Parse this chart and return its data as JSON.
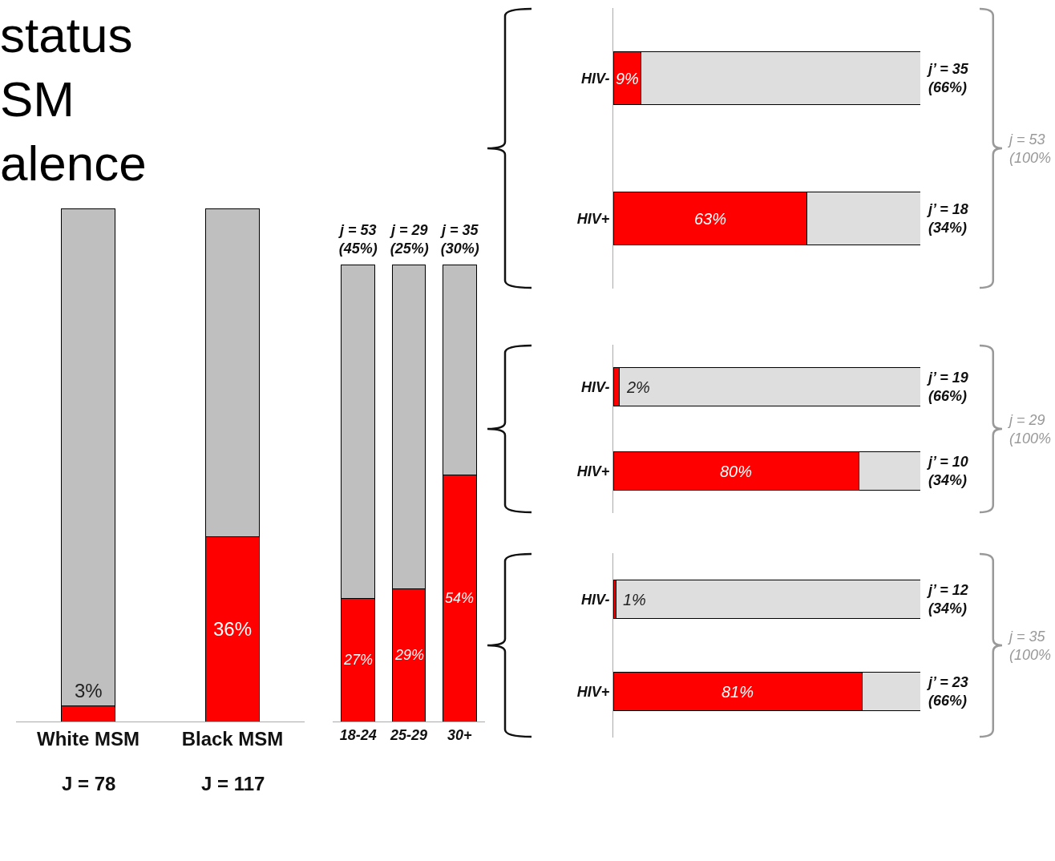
{
  "chart_data": [
    {
      "type": "bar",
      "title": "status\nSM\nalence",
      "categories": [
        "White MSM",
        "Black MSM"
      ],
      "stacked": true,
      "series": [
        {
          "color": "#ff0000",
          "values": [
            3,
            36
          ],
          "value_labels": [
            "3%",
            "36%"
          ]
        },
        {
          "color": "#bfbfbf",
          "values": [
            97,
            64
          ]
        }
      ],
      "annotations": [
        "J = 78",
        "J = 117"
      ]
    },
    {
      "type": "bar",
      "categories": [
        "18-24",
        "25-29",
        "30+"
      ],
      "stacked": true,
      "series": [
        {
          "color": "#ff0000",
          "values": [
            27,
            29,
            54
          ],
          "value_labels": [
            "27%",
            "29%",
            "54%"
          ]
        },
        {
          "color": "#bfbfbf",
          "values": [
            73,
            71,
            46
          ]
        }
      ],
      "annotations": [
        "j = 53\n(45%)",
        "j = 29\n(25%)",
        "j = 35\n(30%)"
      ]
    },
    {
      "type": "bar",
      "orientation": "horizontal",
      "categories": [
        "HIV-",
        "HIV+"
      ],
      "stacked": true,
      "series": [
        {
          "color": "#ff0000",
          "values": [
            9,
            63
          ],
          "value_labels": [
            "9%",
            "63%"
          ]
        },
        {
          "color": "#dedede",
          "values": [
            91,
            37
          ]
        }
      ],
      "annotations": [
        "j’ = 35\n(66%)",
        "j’ = 18\n(34%)",
        "j = 53\n(100%"
      ]
    },
    {
      "type": "bar",
      "orientation": "horizontal",
      "categories": [
        "HIV-",
        "HIV+"
      ],
      "stacked": true,
      "series": [
        {
          "color": "#ff0000",
          "values": [
            2,
            80
          ],
          "value_labels": [
            "2%",
            "80%"
          ]
        },
        {
          "color": "#dedede",
          "values": [
            98,
            20
          ]
        }
      ],
      "annotations": [
        "j’ = 19\n(66%)",
        "j’ = 10\n(34%)",
        "j = 29\n(100%"
      ]
    },
    {
      "type": "bar",
      "orientation": "horizontal",
      "categories": [
        "HIV-",
        "HIV+"
      ],
      "stacked": true,
      "series": [
        {
          "color": "#ff0000",
          "values": [
            1,
            81
          ],
          "value_labels": [
            "1%",
            "81%"
          ]
        },
        {
          "color": "#dedede",
          "values": [
            99,
            19
          ]
        }
      ],
      "annotations": [
        "j’ = 12\n(34%)",
        "j’ = 23\n(66%)",
        "j = 35\n(100%"
      ]
    }
  ]
}
